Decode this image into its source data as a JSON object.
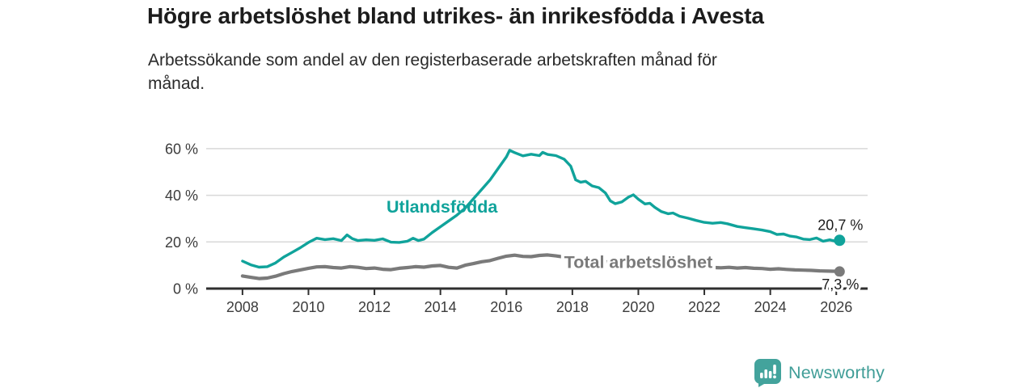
{
  "header": {
    "title": "Högre arbetslöshet bland utrikes- än inrikesfödda i Avesta",
    "subtitle_line1": "Arbetssökande som andel av den registerbaserade arbetskraften månad för",
    "subtitle_line2": "månad."
  },
  "branding": {
    "logo_text": "Newsworthy",
    "logo_icon": "bar-chart-speech-bubble-icon",
    "logo_color": "#43a39c"
  },
  "colors": {
    "accent_teal": "#10a39b",
    "series_gray": "#7a7a7a",
    "gridline": "#d8d8d8",
    "axis": "#2f2f2f",
    "tick_text": "#3c3c3c",
    "annotation_text": "#1c1c1c",
    "background": "#ffffff"
  },
  "chart_data": {
    "type": "line",
    "title": "Högre arbetslöshet bland utrikes- än inrikesfödda i Avesta",
    "subtitle": "Arbetssökande som andel av den registerbaserade arbetskraften månad för månad.",
    "xlabel": "",
    "ylabel": "",
    "grid": "horizontal",
    "legend_position": "inline-labels",
    "xlim": [
      2006.9,
      2026.95
    ],
    "ylim": [
      0,
      65.5
    ],
    "x_ticks": [
      2008,
      2010,
      2012,
      2014,
      2016,
      2018,
      2020,
      2022,
      2024,
      2026
    ],
    "x_tick_labels": [
      "2008",
      "2010",
      "2012",
      "2014",
      "2016",
      "2018",
      "2020",
      "2022",
      "2024",
      "2026"
    ],
    "y_ticks": [
      0,
      20,
      40,
      60
    ],
    "y_tick_labels": [
      "0 %",
      "20 %",
      "40 %",
      "60 %"
    ],
    "series": [
      {
        "name": "Utlandsfödda",
        "color": "#10a39b",
        "line_width": 3.4,
        "end_value": 20.7,
        "end_label": "20,7 %",
        "end_label_position": "above",
        "end_dot_radius": 7,
        "inline_label": {
          "text": "Utlandsfödda",
          "x": 2014.05,
          "y": 35.0,
          "halo": false
        },
        "points": [
          [
            2008.0,
            11.8
          ],
          [
            2008.25,
            10.2
          ],
          [
            2008.5,
            9.2
          ],
          [
            2008.75,
            9.4
          ],
          [
            2009.0,
            11.0
          ],
          [
            2009.25,
            13.5
          ],
          [
            2009.5,
            15.5
          ],
          [
            2009.75,
            17.5
          ],
          [
            2010.0,
            19.8
          ],
          [
            2010.25,
            21.6
          ],
          [
            2010.5,
            21.0
          ],
          [
            2010.75,
            21.4
          ],
          [
            2011.0,
            20.6
          ],
          [
            2011.17,
            23.0
          ],
          [
            2011.33,
            21.4
          ],
          [
            2011.5,
            20.6
          ],
          [
            2011.75,
            20.9
          ],
          [
            2012.0,
            20.7
          ],
          [
            2012.25,
            21.3
          ],
          [
            2012.5,
            19.9
          ],
          [
            2012.75,
            19.8
          ],
          [
            2013.0,
            20.3
          ],
          [
            2013.17,
            21.6
          ],
          [
            2013.33,
            20.6
          ],
          [
            2013.5,
            21.2
          ],
          [
            2013.75,
            24.0
          ],
          [
            2014.0,
            26.5
          ],
          [
            2014.25,
            29.0
          ],
          [
            2014.5,
            31.5
          ],
          [
            2014.75,
            34.5
          ],
          [
            2015.0,
            38.5
          ],
          [
            2015.25,
            42.5
          ],
          [
            2015.5,
            46.5
          ],
          [
            2015.75,
            51.5
          ],
          [
            2016.0,
            56.5
          ],
          [
            2016.1,
            59.3
          ],
          [
            2016.25,
            58.3
          ],
          [
            2016.5,
            56.9
          ],
          [
            2016.75,
            57.6
          ],
          [
            2017.0,
            57.0
          ],
          [
            2017.1,
            58.4
          ],
          [
            2017.25,
            57.5
          ],
          [
            2017.5,
            57.0
          ],
          [
            2017.75,
            55.5
          ],
          [
            2017.95,
            52.5
          ],
          [
            2018.1,
            46.6
          ],
          [
            2018.25,
            45.6
          ],
          [
            2018.4,
            46.0
          ],
          [
            2018.6,
            44.0
          ],
          [
            2018.8,
            43.3
          ],
          [
            2019.0,
            41.0
          ],
          [
            2019.15,
            37.6
          ],
          [
            2019.3,
            36.4
          ],
          [
            2019.5,
            37.2
          ],
          [
            2019.7,
            39.2
          ],
          [
            2019.85,
            40.2
          ],
          [
            2020.0,
            38.3
          ],
          [
            2020.2,
            36.3
          ],
          [
            2020.35,
            36.6
          ],
          [
            2020.5,
            34.8
          ],
          [
            2020.7,
            33.0
          ],
          [
            2020.9,
            32.1
          ],
          [
            2021.05,
            32.4
          ],
          [
            2021.25,
            31.0
          ],
          [
            2021.5,
            30.2
          ],
          [
            2021.75,
            29.2
          ],
          [
            2022.0,
            28.4
          ],
          [
            2022.25,
            28.0
          ],
          [
            2022.5,
            28.3
          ],
          [
            2022.7,
            27.8
          ],
          [
            2023.0,
            26.6
          ],
          [
            2023.25,
            26.1
          ],
          [
            2023.5,
            25.6
          ],
          [
            2023.75,
            25.1
          ],
          [
            2024.0,
            24.4
          ],
          [
            2024.2,
            23.2
          ],
          [
            2024.4,
            23.4
          ],
          [
            2024.6,
            22.5
          ],
          [
            2024.8,
            22.1
          ],
          [
            2025.0,
            21.2
          ],
          [
            2025.2,
            21.0
          ],
          [
            2025.4,
            21.7
          ],
          [
            2025.6,
            20.3
          ],
          [
            2025.8,
            20.9
          ],
          [
            2026.0,
            20.2
          ],
          [
            2026.1,
            20.7
          ]
        ]
      },
      {
        "name": "Total arbetslöshet",
        "color": "#7a7a7a",
        "line_width": 4.2,
        "end_value": 7.3,
        "end_label": "7,3 %",
        "end_label_position": "below",
        "end_dot_radius": 6.5,
        "inline_label": {
          "text": "Total arbetslöshet",
          "x": 2020.0,
          "y": 11.3,
          "halo": true
        },
        "points": [
          [
            2008.0,
            5.4
          ],
          [
            2008.25,
            4.8
          ],
          [
            2008.5,
            4.3
          ],
          [
            2008.75,
            4.5
          ],
          [
            2009.0,
            5.3
          ],
          [
            2009.25,
            6.4
          ],
          [
            2009.5,
            7.3
          ],
          [
            2009.75,
            8.0
          ],
          [
            2010.0,
            8.7
          ],
          [
            2010.25,
            9.3
          ],
          [
            2010.5,
            9.4
          ],
          [
            2010.75,
            9.0
          ],
          [
            2011.0,
            8.8
          ],
          [
            2011.25,
            9.4
          ],
          [
            2011.5,
            9.1
          ],
          [
            2011.75,
            8.6
          ],
          [
            2012.0,
            8.8
          ],
          [
            2012.25,
            8.3
          ],
          [
            2012.5,
            8.1
          ],
          [
            2012.75,
            8.7
          ],
          [
            2013.0,
            9.0
          ],
          [
            2013.25,
            9.4
          ],
          [
            2013.5,
            9.2
          ],
          [
            2013.75,
            9.7
          ],
          [
            2014.0,
            9.9
          ],
          [
            2014.25,
            9.1
          ],
          [
            2014.5,
            8.8
          ],
          [
            2014.75,
            10.0
          ],
          [
            2015.0,
            10.7
          ],
          [
            2015.25,
            11.5
          ],
          [
            2015.5,
            12.0
          ],
          [
            2015.75,
            13.0
          ],
          [
            2016.0,
            13.9
          ],
          [
            2016.25,
            14.3
          ],
          [
            2016.5,
            13.8
          ],
          [
            2016.75,
            13.7
          ],
          [
            2017.0,
            14.2
          ],
          [
            2017.25,
            14.4
          ],
          [
            2017.5,
            14.0
          ],
          [
            2017.75,
            13.5
          ],
          [
            2018.0,
            13.0
          ],
          [
            2018.5,
            12.2
          ],
          [
            2019.0,
            11.5
          ],
          [
            2019.5,
            11.1
          ],
          [
            2020.0,
            11.4
          ],
          [
            2020.5,
            10.7
          ],
          [
            2021.0,
            10.1
          ],
          [
            2021.5,
            9.6
          ],
          [
            2022.0,
            9.2
          ],
          [
            2022.5,
            8.9
          ],
          [
            2022.75,
            9.1
          ],
          [
            2023.0,
            8.8
          ],
          [
            2023.25,
            9.0
          ],
          [
            2023.5,
            8.7
          ],
          [
            2023.75,
            8.6
          ],
          [
            2024.0,
            8.3
          ],
          [
            2024.25,
            8.5
          ],
          [
            2024.5,
            8.2
          ],
          [
            2024.75,
            8.0
          ],
          [
            2025.0,
            7.9
          ],
          [
            2025.25,
            7.8
          ],
          [
            2025.5,
            7.6
          ],
          [
            2025.75,
            7.5
          ],
          [
            2026.0,
            7.4
          ],
          [
            2026.1,
            7.3
          ]
        ]
      }
    ]
  }
}
